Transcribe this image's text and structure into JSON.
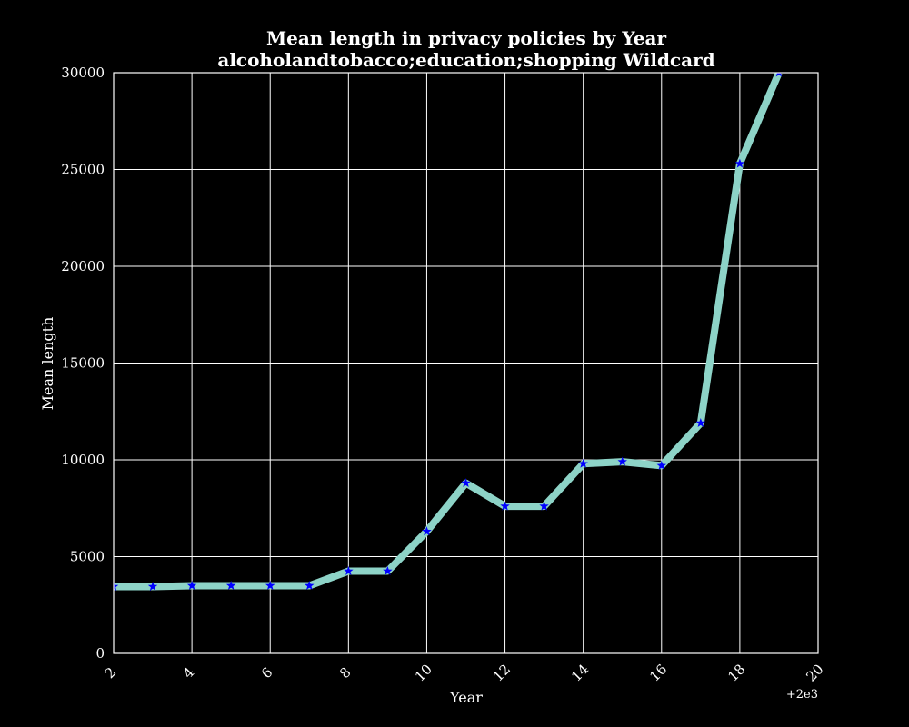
{
  "chart_data": {
    "type": "line",
    "title": "Mean length in privacy policies by Year",
    "subtitle": "alcoholandtobacco;education;shopping Wildcard",
    "xlabel": "Year",
    "ylabel": "Mean length",
    "x_offset_label": "+2e3",
    "xlim": [
      2,
      20
    ],
    "ylim": [
      0,
      30000
    ],
    "x_ticks": [
      2,
      4,
      6,
      8,
      10,
      12,
      14,
      16,
      18,
      20
    ],
    "y_ticks": [
      0,
      5000,
      10000,
      15000,
      20000,
      25000,
      30000
    ],
    "grid": true,
    "colors": {
      "background": "#000000",
      "line": "#8dd3c7",
      "marker": "#0000ff",
      "text": "#ffffff"
    },
    "marker": "star",
    "series": [
      {
        "x": [
          2,
          3,
          4,
          5,
          6,
          7,
          8,
          9,
          10,
          11,
          12,
          13,
          14,
          15,
          16,
          17,
          18,
          19
        ],
        "values": [
          3450,
          3450,
          3500,
          3500,
          3500,
          3500,
          4250,
          4250,
          6300,
          8800,
          7600,
          7600,
          9800,
          9900,
          9700,
          11900,
          25300,
          30000
        ]
      }
    ]
  }
}
